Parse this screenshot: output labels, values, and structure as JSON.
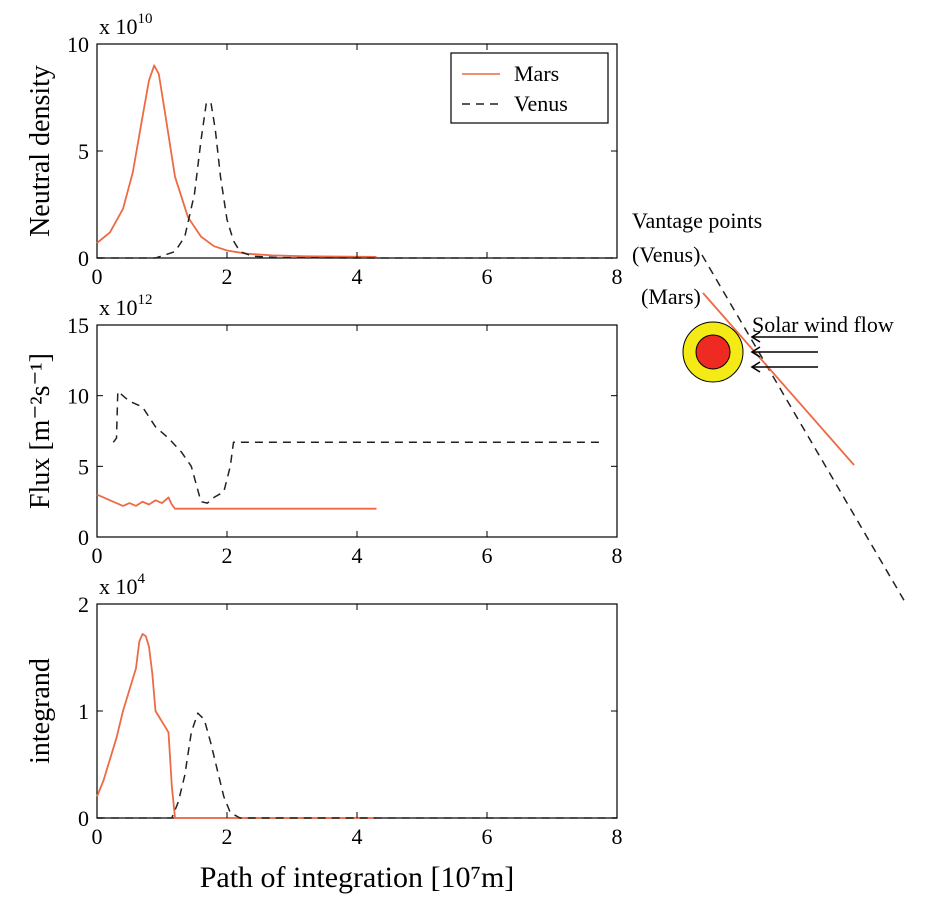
{
  "chart_data": [
    {
      "type": "line",
      "ylabel": "Neutral density",
      "multiplier": {
        "base": "x 10",
        "exp": "10"
      },
      "xlim": [
        0,
        8
      ],
      "ylim": [
        0,
        10
      ],
      "xticks": [
        "0",
        "2",
        "4",
        "6",
        "8"
      ],
      "yticks": [
        "0",
        "5",
        "10"
      ],
      "legend": {
        "position": "top-right",
        "entries": [
          "Mars",
          "Venus"
        ]
      },
      "series": [
        {
          "name": "Mars",
          "color": "#ee6a45",
          "dash": "solid",
          "x": [
            0,
            0.2,
            0.4,
            0.55,
            0.7,
            0.8,
            0.88,
            0.95,
            1.05,
            1.2,
            1.4,
            1.6,
            1.8,
            2.0,
            2.3,
            2.7,
            3.2,
            4.3
          ],
          "y": [
            0.7,
            1.2,
            2.3,
            4.0,
            6.6,
            8.3,
            9.0,
            8.6,
            6.7,
            3.8,
            1.9,
            1.0,
            0.55,
            0.35,
            0.2,
            0.12,
            0.08,
            0.05
          ]
        },
        {
          "name": "Venus",
          "color": "#222222",
          "dash": "dashed",
          "x": [
            0,
            0.9,
            1.2,
            1.35,
            1.5,
            1.6,
            1.68,
            1.75,
            1.82,
            1.9,
            2.0,
            2.1,
            2.2,
            2.4,
            2.8,
            4,
            6,
            8
          ],
          "y": [
            0,
            0,
            0.3,
            1.0,
            3.0,
            5.5,
            7.2,
            7.3,
            6.0,
            3.8,
            1.8,
            0.8,
            0.3,
            0.08,
            0.02,
            0,
            0,
            0
          ]
        }
      ]
    },
    {
      "type": "line",
      "ylabel": "Flux  [m⁻²s⁻¹]",
      "multiplier": {
        "base": "x 10",
        "exp": "12"
      },
      "xlim": [
        0,
        8
      ],
      "ylim": [
        0,
        15
      ],
      "xticks": [
        "0",
        "2",
        "4",
        "6",
        "8"
      ],
      "yticks": [
        "0",
        "5",
        "10",
        "15"
      ],
      "series": [
        {
          "name": "Mars",
          "color": "#ee6a45",
          "dash": "solid",
          "x": [
            0,
            0.2,
            0.4,
            0.5,
            0.6,
            0.7,
            0.8,
            0.9,
            1.0,
            1.1,
            1.15,
            1.2,
            1.25,
            1.3,
            2.0,
            3.0,
            4.3
          ],
          "y": [
            3.0,
            2.6,
            2.2,
            2.4,
            2.2,
            2.5,
            2.3,
            2.6,
            2.4,
            2.8,
            2.3,
            2.0,
            2.0,
            2.0,
            2.0,
            2.0,
            2.0
          ]
        },
        {
          "name": "Venus",
          "color": "#222222",
          "dash": "dashed",
          "x": [
            0.25,
            0.3,
            0.32,
            0.5,
            0.7,
            0.9,
            1.1,
            1.3,
            1.45,
            1.6,
            1.7,
            1.8,
            1.95,
            2.05,
            2.1,
            2.15,
            3,
            5,
            7.8
          ],
          "y": [
            6.7,
            7.0,
            10.3,
            9.6,
            9.2,
            7.8,
            7.0,
            6.0,
            5.0,
            2.5,
            2.4,
            2.8,
            3.2,
            5.0,
            6.7,
            6.7,
            6.7,
            6.7,
            6.7
          ]
        }
      ]
    },
    {
      "type": "line",
      "ylabel": "integrand",
      "multiplier": {
        "base": "x 10",
        "exp": "4"
      },
      "xlim": [
        0,
        8
      ],
      "ylim": [
        0,
        2
      ],
      "xticks": [
        "0",
        "2",
        "4",
        "6",
        "8"
      ],
      "yticks": [
        "0",
        "1",
        "2"
      ],
      "xlabel": "Path of integration  [10⁷m]",
      "series": [
        {
          "name": "Mars",
          "color": "#ee6a45",
          "dash": "solid",
          "x": [
            0,
            0.1,
            0.2,
            0.3,
            0.4,
            0.5,
            0.6,
            0.65,
            0.7,
            0.75,
            0.8,
            0.85,
            0.9,
            0.95,
            1.0,
            1.05,
            1.1,
            1.15,
            1.2,
            2.0,
            4.3
          ],
          "y": [
            0.2,
            0.35,
            0.55,
            0.75,
            1.0,
            1.2,
            1.4,
            1.65,
            1.72,
            1.7,
            1.6,
            1.35,
            1.0,
            0.95,
            0.9,
            0.85,
            0.8,
            0.3,
            0,
            0,
            0
          ]
        },
        {
          "name": "Venus",
          "color": "#222222",
          "dash": "dashed",
          "x": [
            0,
            1.0,
            1.15,
            1.25,
            1.35,
            1.45,
            1.55,
            1.65,
            1.75,
            1.85,
            1.95,
            2.05,
            2.2,
            2.5,
            4,
            6,
            8
          ],
          "y": [
            0,
            0,
            0,
            0.15,
            0.4,
            0.8,
            0.98,
            0.92,
            0.7,
            0.45,
            0.2,
            0.05,
            0,
            0,
            0,
            0,
            0
          ]
        }
      ]
    }
  ],
  "diagram": {
    "labels": {
      "vantage": "Vantage points",
      "venus": "(Venus)",
      "mars": "(Mars)",
      "solar_wind": "Solar wind flow"
    },
    "colors": {
      "ring": "#f3ea16",
      "planet": "#ee2a22",
      "mars_line": "#ee6a45",
      "venus_line": "#222222"
    }
  }
}
